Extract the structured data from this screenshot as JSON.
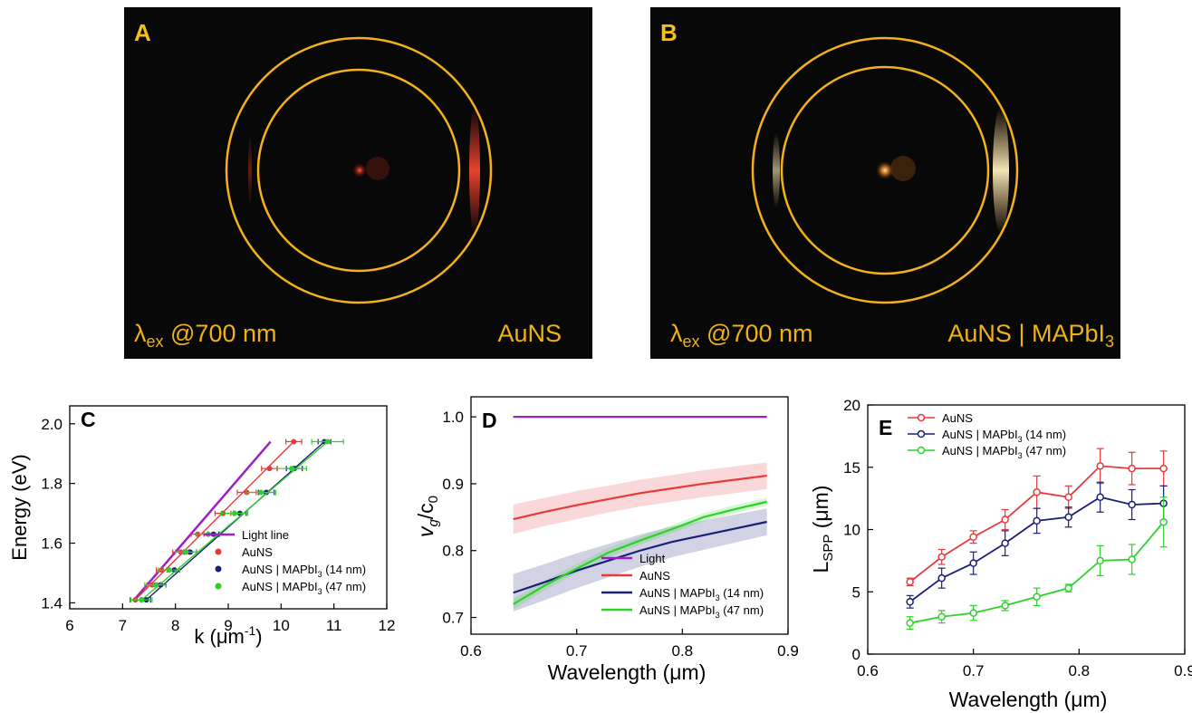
{
  "colors": {
    "ring": "#f3b21a",
    "label_text": "#f0b114",
    "light": "#9b20c8",
    "aunx": "#e8393b",
    "m14": "#1a1f78",
    "m47": "#2ed12a"
  },
  "panel_a": {
    "letter": "A",
    "excitation_symbol": "λ",
    "excitation_sub": "ex",
    "excitation_value": " @700 nm",
    "sample": "AuNS"
  },
  "panel_b": {
    "letter": "B",
    "excitation_symbol": "λ",
    "excitation_sub": "ex",
    "excitation_value": " @700 nm",
    "sample_main": "AuNS | MAPbI",
    "sample_sub": "3"
  },
  "chart_data": [
    {
      "panel": "C",
      "type": "scatter",
      "xlabel_main": "k (μm",
      "xlabel_sup": "-1",
      "xlabel_tail": ")",
      "ylabel": "Energy (eV)",
      "xlim": [
        6,
        12
      ],
      "ylim": [
        1.38,
        2.06
      ],
      "xticks": [
        "6",
        "7",
        "8",
        "9",
        "10",
        "11",
        "12"
      ],
      "yticks": [
        "1.4",
        "1.6",
        "1.8",
        "2.0"
      ],
      "xtick_values": [
        6,
        7,
        8,
        9,
        10,
        11,
        12
      ],
      "ytick_values": [
        1.4,
        1.6,
        1.8,
        2.0
      ],
      "light_line": {
        "name": "Light line",
        "x": [
          7.22,
          9.8
        ],
        "y": [
          1.41,
          1.94
        ]
      },
      "series": [
        {
          "name": "AuNS",
          "color_key": "aunx",
          "x": [
            7.24,
            7.56,
            7.74,
            8.1,
            8.42,
            8.9,
            9.35,
            9.78,
            10.24
          ],
          "y": [
            1.41,
            1.46,
            1.51,
            1.57,
            1.63,
            1.7,
            1.77,
            1.85,
            1.94
          ],
          "xerr": [
            0.1,
            0.1,
            0.1,
            0.15,
            0.12,
            0.15,
            0.18,
            0.15,
            0.15
          ]
        },
        {
          "name": "AuNS | MAPbI",
          "name_sub": "3",
          "name_tail": " (14 nm)",
          "color_key": "m14",
          "x": [
            7.45,
            7.72,
            7.98,
            8.28,
            8.72,
            9.22,
            9.72,
            10.25,
            10.82
          ],
          "y": [
            1.41,
            1.46,
            1.51,
            1.57,
            1.63,
            1.7,
            1.77,
            1.85,
            1.94
          ],
          "xerr": [
            0.08,
            0.1,
            0.1,
            0.12,
            0.1,
            0.12,
            0.15,
            0.15,
            0.12
          ]
        },
        {
          "name": "AuNS | MAPbI",
          "name_sub": "3",
          "name_tail": " (47 nm)",
          "color_key": "m47",
          "x": [
            7.36,
            7.62,
            7.88,
            8.2,
            8.62,
            9.12,
            9.62,
            10.2,
            10.88
          ],
          "y": [
            1.41,
            1.46,
            1.51,
            1.57,
            1.63,
            1.7,
            1.77,
            1.85,
            1.94
          ],
          "xerr": [
            0.2,
            0.2,
            0.2,
            0.2,
            0.22,
            0.25,
            0.28,
            0.28,
            0.3
          ]
        }
      ]
    },
    {
      "panel": "D",
      "type": "line",
      "xlabel": "Wavelength (μm)",
      "ylabel_main": "v",
      "ylabel_sub": "g",
      "ylabel_mid": "/c",
      "ylabel_sub2": "0",
      "xlim": [
        0.6,
        0.9
      ],
      "ylim": [
        0.675,
        1.03
      ],
      "xticks": [
        "0.6",
        "0.7",
        "0.8",
        "0.9"
      ],
      "yticks": [
        "0.7",
        "0.8",
        "0.9",
        "1.0"
      ],
      "xtick_values": [
        0.6,
        0.7,
        0.8,
        0.9
      ],
      "ytick_values": [
        0.7,
        0.8,
        0.9,
        1.0
      ],
      "x": [
        0.64,
        0.67,
        0.7,
        0.73,
        0.76,
        0.79,
        0.82,
        0.85,
        0.88
      ],
      "series": [
        {
          "name": "Light",
          "color_key": "light",
          "values": [
            1.0,
            1.0,
            1.0,
            1.0,
            1.0,
            1.0,
            1.0,
            1.0,
            1.0
          ]
        },
        {
          "name": "AuNS",
          "color_key": "aunx",
          "values": [
            0.847,
            0.858,
            0.868,
            0.877,
            0.886,
            0.893,
            0.9,
            0.906,
            0.912
          ],
          "band": [
            0.022,
            0.021,
            0.021,
            0.02,
            0.02,
            0.02,
            0.02,
            0.02,
            0.02
          ]
        },
        {
          "name": "AuNS | MAPbI",
          "name_sub": "3",
          "name_tail": " (14 nm)",
          "color_key": "m14",
          "values": [
            0.737,
            0.753,
            0.77,
            0.785,
            0.8,
            0.813,
            0.823,
            0.833,
            0.843
          ],
          "band": [
            0.028,
            0.027,
            0.026,
            0.025,
            0.024,
            0.023,
            0.022,
            0.021,
            0.02
          ]
        },
        {
          "name": "AuNS | MAPbI",
          "name_sub": "3",
          "name_tail": " (47 nm)",
          "color_key": "m47",
          "values": [
            0.72,
            0.748,
            0.773,
            0.797,
            0.815,
            0.832,
            0.85,
            0.862,
            0.873
          ],
          "band": [
            0.008,
            0.007,
            0.007,
            0.007,
            0.006,
            0.006,
            0.006,
            0.006,
            0.006
          ]
        }
      ]
    },
    {
      "panel": "E",
      "type": "line",
      "xlabel": "Wavelength (μm)",
      "ylabel_main": "L",
      "ylabel_sub": "SPP",
      "ylabel_tail": " (μm)",
      "xlim": [
        0.6,
        0.9
      ],
      "ylim": [
        0,
        20
      ],
      "xticks": [
        "0.6",
        "0.7",
        "0.8",
        "0.9"
      ],
      "yticks": [
        "0",
        "5",
        "10",
        "15",
        "20"
      ],
      "xtick_values": [
        0.6,
        0.7,
        0.8,
        0.9
      ],
      "ytick_values": [
        0,
        5,
        10,
        15,
        20
      ],
      "x": [
        0.64,
        0.67,
        0.7,
        0.73,
        0.76,
        0.79,
        0.82,
        0.85,
        0.88
      ],
      "series": [
        {
          "name": "AuNS",
          "color_key": "aunx",
          "values": [
            5.8,
            7.8,
            9.4,
            10.8,
            13.0,
            12.6,
            15.1,
            14.9,
            14.9
          ],
          "yerr": [
            0.3,
            0.6,
            0.5,
            0.8,
            1.3,
            0.9,
            1.4,
            1.3,
            1.4
          ]
        },
        {
          "name": "AuNS | MAPbI",
          "name_sub": "3",
          "name_tail": " (14 nm)",
          "color_key": "m14",
          "values": [
            4.2,
            6.1,
            7.3,
            8.9,
            10.7,
            11.0,
            12.6,
            12.0,
            12.1
          ],
          "yerr": [
            0.5,
            0.8,
            0.9,
            1.0,
            1.0,
            0.8,
            1.2,
            1.2,
            1.4
          ]
        },
        {
          "name": "AuNS | MAPbI",
          "name_sub": "3",
          "name_tail": " (47 nm)",
          "color_key": "m47",
          "values": [
            2.5,
            3.0,
            3.3,
            3.9,
            4.6,
            5.3,
            7.5,
            7.6,
            10.6
          ],
          "yerr": [
            0.5,
            0.5,
            0.6,
            0.4,
            0.7,
            0.3,
            1.2,
            1.2,
            2.0
          ]
        }
      ]
    }
  ]
}
